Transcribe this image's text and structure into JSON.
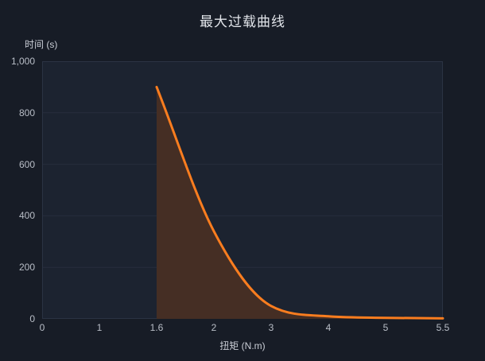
{
  "chart_data": {
    "type": "area",
    "title": "最大过载曲线",
    "xlabel": "扭矩 (N.m)",
    "ylabel": "时间 (s)",
    "x_categories": [
      "0",
      "1",
      "1.6",
      "2",
      "3",
      "4",
      "5",
      "5.5"
    ],
    "y_tick_labels": [
      "0",
      "200",
      "400",
      "600",
      "800",
      "1,000"
    ],
    "y_tick_values": [
      0,
      200,
      400,
      600,
      800,
      1000
    ],
    "ylim": [
      0,
      1000
    ],
    "values": [
      null,
      null,
      900,
      340,
      50,
      10,
      4,
      2
    ],
    "smooth": true,
    "grid": true,
    "legend_position": "none",
    "line_color": "#fa7d1f",
    "area_color": "#452e24",
    "plot_bg_color": "#1c2330",
    "grid_line_color": "#262d3c",
    "border_color": "#2b3343",
    "axis_label_color": "#b9bec7"
  }
}
